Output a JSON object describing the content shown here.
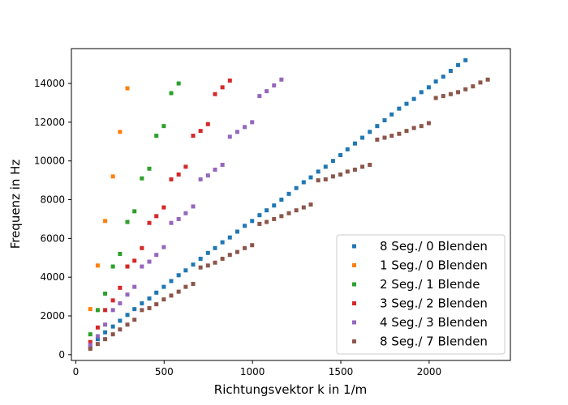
{
  "chart_data": {
    "type": "scatter",
    "title": "",
    "xlabel": "Richtungsvektor k in 1/m",
    "ylabel": "Frequenz in Hz",
    "xlim": [
      -25,
      2460
    ],
    "ylim": [
      -300,
      15800
    ],
    "xticks": [
      0,
      500,
      1000,
      1500,
      2000
    ],
    "yticks": [
      0,
      2000,
      4000,
      6000,
      8000,
      10000,
      12000,
      14000
    ],
    "grid": false,
    "legend_position": "lower-right",
    "series": [
      {
        "name": "8 Seg./ 0 Blenden",
        "color": "#1f77b4",
        "points": [
          [
            82,
            400
          ],
          [
            124,
            800
          ],
          [
            166,
            1150
          ],
          [
            210,
            1450
          ],
          [
            250,
            1750
          ],
          [
            292,
            2050
          ],
          [
            332,
            2350
          ],
          [
            374,
            2650
          ],
          [
            416,
            2900
          ],
          [
            456,
            3200
          ],
          [
            498,
            3500
          ],
          [
            540,
            3800
          ],
          [
            582,
            4100
          ],
          [
            622,
            4350
          ],
          [
            664,
            4650
          ],
          [
            706,
            4950
          ],
          [
            748,
            5250
          ],
          [
            788,
            5500
          ],
          [
            830,
            5800
          ],
          [
            872,
            6050
          ],
          [
            914,
            6350
          ],
          [
            956,
            6650
          ],
          [
            998,
            6900
          ],
          [
            1040,
            7200
          ],
          [
            1080,
            7450
          ],
          [
            1122,
            7700
          ],
          [
            1164,
            8000
          ],
          [
            1206,
            8300
          ],
          [
            1248,
            8600
          ],
          [
            1290,
            8900
          ],
          [
            1330,
            9150
          ],
          [
            1372,
            9450
          ],
          [
            1414,
            9700
          ],
          [
            1456,
            10000
          ],
          [
            1498,
            10300
          ],
          [
            1538,
            10600
          ],
          [
            1580,
            10900
          ],
          [
            1622,
            11200
          ],
          [
            1664,
            11500
          ],
          [
            1706,
            11800
          ],
          [
            1748,
            12100
          ],
          [
            1788,
            12400
          ],
          [
            1830,
            12700
          ],
          [
            1872,
            12950
          ],
          [
            1914,
            13200
          ],
          [
            1956,
            13550
          ],
          [
            1998,
            13800
          ],
          [
            2038,
            14100
          ],
          [
            2080,
            14350
          ],
          [
            2122,
            14650
          ],
          [
            2164,
            14950
          ],
          [
            2206,
            15200
          ]
        ]
      },
      {
        "name": "1 Seg./ 0 Blenden",
        "color": "#ff7f0e",
        "points": [
          [
            82,
            2350
          ],
          [
            124,
            4600
          ],
          [
            166,
            6900
          ],
          [
            210,
            9200
          ],
          [
            250,
            11500
          ],
          [
            292,
            13750
          ]
        ]
      },
      {
        "name": "2 Seg./ 1 Blende",
        "color": "#2ca02c",
        "points": [
          [
            82,
            1050
          ],
          [
            124,
            2300
          ],
          [
            166,
            3150
          ],
          [
            210,
            4550
          ],
          [
            250,
            5200
          ],
          [
            292,
            6850
          ],
          [
            332,
            7400
          ],
          [
            374,
            9100
          ],
          [
            416,
            9600
          ],
          [
            456,
            11300
          ],
          [
            498,
            11800
          ],
          [
            540,
            13500
          ],
          [
            582,
            14000
          ]
        ]
      },
      {
        "name": "3 Seg./ 2 Blenden",
        "color": "#d62728",
        "points": [
          [
            82,
            650
          ],
          [
            124,
            1400
          ],
          [
            166,
            2300
          ],
          [
            210,
            2800
          ],
          [
            250,
            3450
          ],
          [
            292,
            4550
          ],
          [
            332,
            4850
          ],
          [
            374,
            5500
          ],
          [
            416,
            6800
          ],
          [
            456,
            7150
          ],
          [
            498,
            7600
          ],
          [
            540,
            9050
          ],
          [
            582,
            9300
          ],
          [
            622,
            9700
          ],
          [
            664,
            11300
          ],
          [
            706,
            11550
          ],
          [
            748,
            11900
          ],
          [
            788,
            13450
          ],
          [
            830,
            13800
          ],
          [
            872,
            14150
          ]
        ]
      },
      {
        "name": "4 Seg./ 3 Blenden",
        "color": "#9467bd",
        "points": [
          [
            82,
            500
          ],
          [
            124,
            950
          ],
          [
            166,
            1550
          ],
          [
            210,
            2300
          ],
          [
            250,
            2650
          ],
          [
            292,
            3100
          ],
          [
            332,
            3500
          ],
          [
            374,
            4550
          ],
          [
            416,
            4800
          ],
          [
            456,
            5150
          ],
          [
            498,
            5550
          ],
          [
            540,
            6800
          ],
          [
            582,
            7000
          ],
          [
            622,
            7300
          ],
          [
            664,
            7650
          ],
          [
            706,
            9050
          ],
          [
            748,
            9250
          ],
          [
            788,
            9550
          ],
          [
            830,
            9800
          ],
          [
            872,
            11250
          ],
          [
            914,
            11500
          ],
          [
            956,
            11750
          ],
          [
            998,
            12000
          ],
          [
            1040,
            13350
          ],
          [
            1080,
            13600
          ],
          [
            1122,
            13900
          ],
          [
            1164,
            14200
          ]
        ]
      },
      {
        "name": "8 Seg./ 7 Blenden",
        "color": "#8c564b",
        "points": [
          [
            82,
            300
          ],
          [
            124,
            550
          ],
          [
            166,
            800
          ],
          [
            210,
            1050
          ],
          [
            250,
            1300
          ],
          [
            292,
            1550
          ],
          [
            332,
            1800
          ],
          [
            374,
            2300
          ],
          [
            416,
            2400
          ],
          [
            456,
            2600
          ],
          [
            498,
            2850
          ],
          [
            540,
            3050
          ],
          [
            582,
            3250
          ],
          [
            622,
            3500
          ],
          [
            664,
            3650
          ],
          [
            706,
            4500
          ],
          [
            748,
            4600
          ],
          [
            788,
            4750
          ],
          [
            830,
            4950
          ],
          [
            872,
            5150
          ],
          [
            914,
            5300
          ],
          [
            956,
            5500
          ],
          [
            998,
            5650
          ],
          [
            1040,
            6750
          ],
          [
            1080,
            6850
          ],
          [
            1122,
            7000
          ],
          [
            1164,
            7150
          ],
          [
            1206,
            7300
          ],
          [
            1248,
            7450
          ],
          [
            1290,
            7600
          ],
          [
            1330,
            7750
          ],
          [
            1372,
            9000
          ],
          [
            1414,
            9050
          ],
          [
            1456,
            9200
          ],
          [
            1498,
            9300
          ],
          [
            1538,
            9450
          ],
          [
            1580,
            9550
          ],
          [
            1622,
            9700
          ],
          [
            1664,
            9800
          ],
          [
            1706,
            11100
          ],
          [
            1748,
            11200
          ],
          [
            1788,
            11300
          ],
          [
            1830,
            11400
          ],
          [
            1872,
            11550
          ],
          [
            1914,
            11700
          ],
          [
            1956,
            11800
          ],
          [
            1998,
            11950
          ],
          [
            2038,
            13250
          ],
          [
            2080,
            13350
          ],
          [
            2122,
            13450
          ],
          [
            2164,
            13550
          ],
          [
            2206,
            13700
          ],
          [
            2248,
            13850
          ],
          [
            2290,
            14050
          ],
          [
            2332,
            14200
          ]
        ]
      }
    ]
  }
}
